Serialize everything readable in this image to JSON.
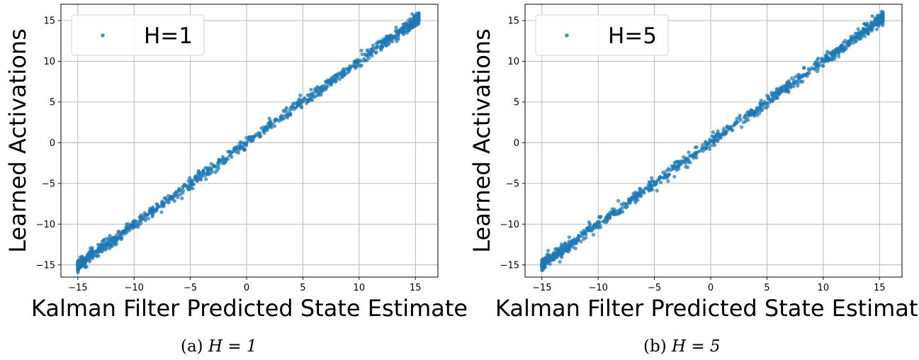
{
  "captions": [
    {
      "prefix": "(a) ",
      "math": "H = 1"
    },
    {
      "prefix": "(b) ",
      "math": "H = 5"
    }
  ],
  "chart_data": [
    {
      "type": "scatter",
      "title": "",
      "xlabel": "Kalman Filter Predicted State Estimate",
      "ylabel": "Learned Activations",
      "xlim": [
        -16.5,
        17
      ],
      "ylim": [
        -16.5,
        17
      ],
      "xticks": [
        -15,
        -10,
        -5,
        0,
        5,
        10,
        15
      ],
      "yticks": [
        -15,
        -10,
        -5,
        0,
        5,
        10,
        15
      ],
      "tick_labels": [
        "−15",
        "−10",
        "−5",
        "0",
        "5",
        "10",
        "15"
      ],
      "grid": true,
      "legend": {
        "position": "top-left",
        "entries": [
          "H=1"
        ]
      },
      "series": [
        {
          "name": "H=1",
          "color": "#1f77b4",
          "marker": "circle",
          "alpha": 0.7,
          "x_range": [
            -15,
            15.3
          ],
          "relation": "y ≈ x",
          "noise": 0.35,
          "count": 1000
        }
      ],
      "reference_line": {
        "style": "dashed",
        "from": [
          -15,
          -15
        ],
        "to": [
          15.3,
          15.3
        ]
      }
    },
    {
      "type": "scatter",
      "title": "",
      "xlabel": "Kalman Filter Predicted State Estimate",
      "ylabel": "Learned Activations",
      "xlim": [
        -16.5,
        17
      ],
      "ylim": [
        -16.5,
        17
      ],
      "xticks": [
        -15,
        -10,
        -5,
        0,
        5,
        10,
        15
      ],
      "yticks": [
        -15,
        -10,
        -5,
        0,
        5,
        10,
        15
      ],
      "tick_labels": [
        "−15",
        "−10",
        "−5",
        "0",
        "5",
        "10",
        "15"
      ],
      "grid": true,
      "legend": {
        "position": "top-left",
        "entries": [
          "H=5"
        ]
      },
      "series": [
        {
          "name": "H=5",
          "color": "#1f77b4",
          "marker": "circle",
          "alpha": 0.7,
          "x_range": [
            -15,
            15.3
          ],
          "relation": "y ≈ x",
          "noise": 0.35,
          "count": 1000
        }
      ],
      "reference_line": {
        "style": "dashed",
        "from": [
          -15,
          -15
        ],
        "to": [
          15.3,
          15.3
        ]
      }
    }
  ]
}
